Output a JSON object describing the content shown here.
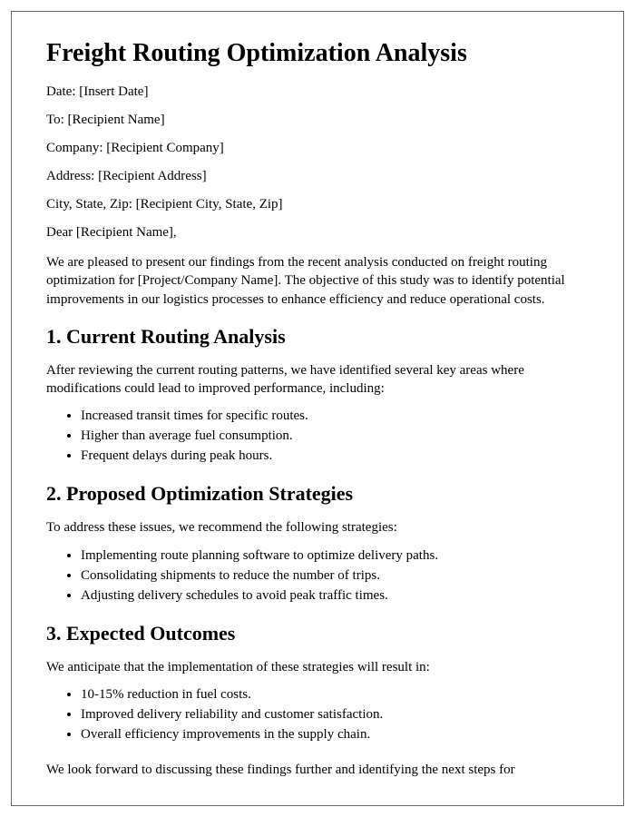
{
  "title": "Freight Routing Optimization Analysis",
  "meta": {
    "date_label": "Date: [Insert Date]",
    "to_label": "To: [Recipient Name]",
    "company_label": "Company: [Recipient Company]",
    "address_label": "Address: [Recipient Address]",
    "csz_label": "City, State, Zip: [Recipient City, State, Zip]",
    "salutation": "Dear [Recipient Name],"
  },
  "intro": "We are pleased to present our findings from the recent analysis conducted on freight routing optimization for [Project/Company Name]. The objective of this study was to identify potential improvements in our logistics processes to enhance efficiency and reduce operational costs.",
  "section1": {
    "heading": "1. Current Routing Analysis",
    "text": "After reviewing the current routing patterns, we have identified several key areas where modifications could lead to improved performance, including:",
    "items": [
      "Increased transit times for specific routes.",
      "Higher than average fuel consumption.",
      "Frequent delays during peak hours."
    ]
  },
  "section2": {
    "heading": "2. Proposed Optimization Strategies",
    "text": "To address these issues, we recommend the following strategies:",
    "items": [
      "Implementing route planning software to optimize delivery paths.",
      "Consolidating shipments to reduce the number of trips.",
      "Adjusting delivery schedules to avoid peak traffic times."
    ]
  },
  "section3": {
    "heading": "3. Expected Outcomes",
    "text": "We anticipate that the implementation of these strategies will result in:",
    "items": [
      "10-15% reduction in fuel costs.",
      "Improved delivery reliability and customer satisfaction.",
      "Overall efficiency improvements in the supply chain."
    ]
  },
  "closing": "We look forward to discussing these findings further and identifying the next steps for"
}
